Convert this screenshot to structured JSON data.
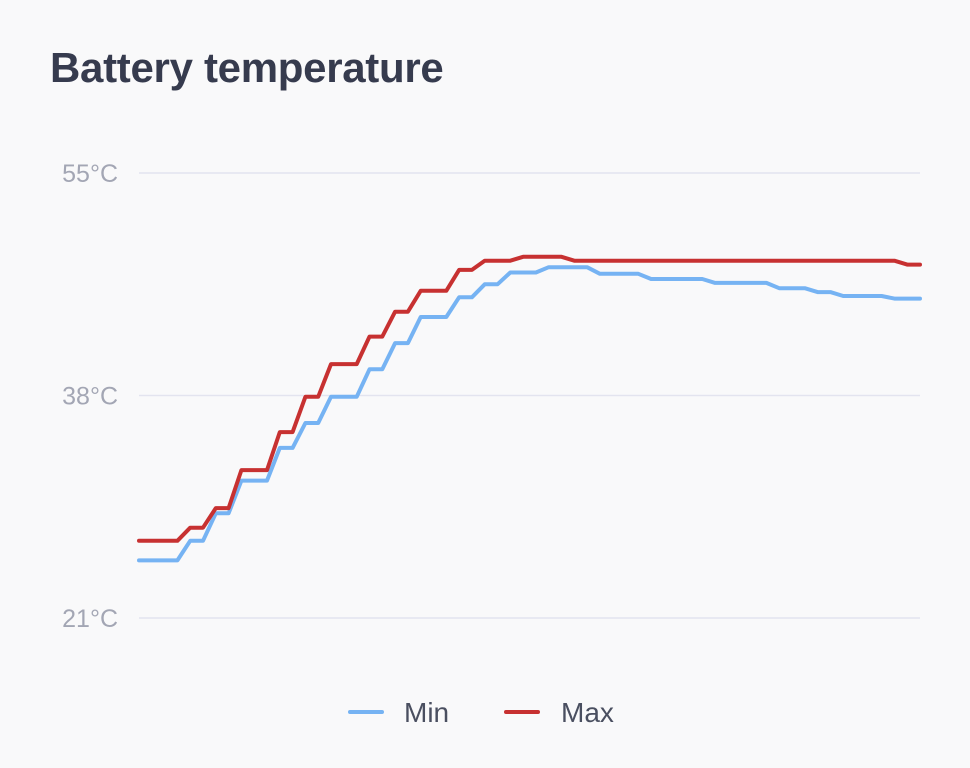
{
  "title": "Battery temperature",
  "colors": {
    "min": "#76b3f3",
    "max": "#c73131",
    "grid": "#e3e4ef",
    "tick_text": "#a3a6b4",
    "title": "#363b4e",
    "background": "#f9f9fa"
  },
  "chart_data": {
    "type": "line",
    "title": "Battery temperature",
    "xlabel": "",
    "ylabel": "",
    "ylim": [
      21,
      55
    ],
    "y_ticks": [
      21,
      38,
      55
    ],
    "y_tick_labels": [
      "21°C",
      "38°C",
      "55°C"
    ],
    "grid": true,
    "legend_position": "bottom-center",
    "x": [
      0,
      1,
      2,
      3,
      4,
      5,
      6,
      7,
      8,
      9,
      10,
      11,
      12,
      13,
      14,
      15,
      16,
      17,
      18,
      19,
      20,
      21,
      22,
      23,
      24,
      25,
      26,
      27,
      28,
      29,
      30,
      31,
      32,
      33,
      34,
      35,
      36,
      37,
      38,
      39,
      40,
      41,
      42,
      43,
      44,
      45,
      46,
      47,
      48,
      49,
      50,
      51,
      52,
      53,
      54,
      55,
      56,
      57,
      58,
      59,
      60,
      61
    ],
    "series": [
      {
        "name": "Min",
        "color": "#76b3f3",
        "values": [
          25.4,
          25.4,
          25.4,
          25.4,
          26.9,
          26.9,
          29.0,
          29.0,
          31.5,
          31.5,
          31.5,
          34.0,
          34.0,
          35.9,
          35.9,
          37.9,
          37.9,
          37.9,
          40.0,
          40.0,
          42.0,
          42.0,
          44.0,
          44.0,
          44.0,
          45.5,
          45.5,
          46.5,
          46.5,
          47.4,
          47.4,
          47.4,
          47.8,
          47.8,
          47.8,
          47.8,
          47.3,
          47.3,
          47.3,
          47.3,
          46.9,
          46.9,
          46.9,
          46.9,
          46.9,
          46.6,
          46.6,
          46.6,
          46.6,
          46.6,
          46.2,
          46.2,
          46.2,
          45.9,
          45.9,
          45.6,
          45.6,
          45.6,
          45.6,
          45.4,
          45.4,
          45.4
        ]
      },
      {
        "name": "Max",
        "color": "#c73131",
        "values": [
          26.9,
          26.9,
          26.9,
          26.9,
          27.9,
          27.9,
          29.4,
          29.4,
          32.3,
          32.3,
          32.3,
          35.2,
          35.2,
          37.9,
          37.9,
          40.4,
          40.4,
          40.4,
          42.5,
          42.5,
          44.4,
          44.4,
          46.0,
          46.0,
          46.0,
          47.6,
          47.6,
          48.3,
          48.3,
          48.3,
          48.6,
          48.6,
          48.6,
          48.6,
          48.3,
          48.3,
          48.3,
          48.3,
          48.3,
          48.3,
          48.3,
          48.3,
          48.3,
          48.3,
          48.3,
          48.3,
          48.3,
          48.3,
          48.3,
          48.3,
          48.3,
          48.3,
          48.3,
          48.3,
          48.3,
          48.3,
          48.3,
          48.3,
          48.3,
          48.3,
          48.0,
          48.0
        ]
      }
    ]
  }
}
